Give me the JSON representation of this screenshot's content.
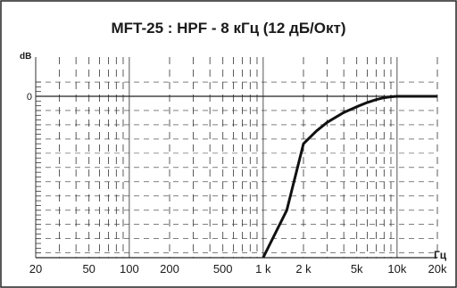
{
  "chart_data": {
    "type": "line",
    "title": "MFT-25 : HPF - 8 кГц (12 дБ/Окт)",
    "ylabel": "dB",
    "xlabel": "Гц",
    "x_scale": "log",
    "xlim": [
      20,
      20000
    ],
    "x_ticks": [
      {
        "value": 20,
        "label": "20"
      },
      {
        "value": 50,
        "label": "50"
      },
      {
        "value": 100,
        "label": "100"
      },
      {
        "value": 200,
        "label": "200"
      },
      {
        "value": 500,
        "label": "500"
      },
      {
        "value": 1000,
        "label": "1 k"
      },
      {
        "value": 2000,
        "label": "2 k"
      },
      {
        "value": 5000,
        "label": "5k"
      },
      {
        "value": 10000,
        "label": "10k"
      },
      {
        "value": 20000,
        "label": "20k"
      }
    ],
    "ylim": [
      -34,
      3
    ],
    "y_ticks": [
      {
        "value": 0,
        "label": "0"
      }
    ],
    "grid": true,
    "series": [
      {
        "x": [
          1000,
          1500,
          2000,
          2500,
          3000,
          4000,
          5000,
          6000,
          7000,
          8000,
          9000,
          10000,
          12000,
          15000,
          20000
        ],
        "y": [
          -34,
          -24,
          -10,
          -7.3,
          -5.5,
          -3.4,
          -2.2,
          -1.3,
          -0.7,
          -0.3,
          -0.1,
          0,
          0,
          0,
          0
        ]
      }
    ]
  },
  "colors": {
    "frame": "#222222",
    "grid_dash": "#333333",
    "grid_solid": "#555555",
    "curve": "#111111"
  }
}
